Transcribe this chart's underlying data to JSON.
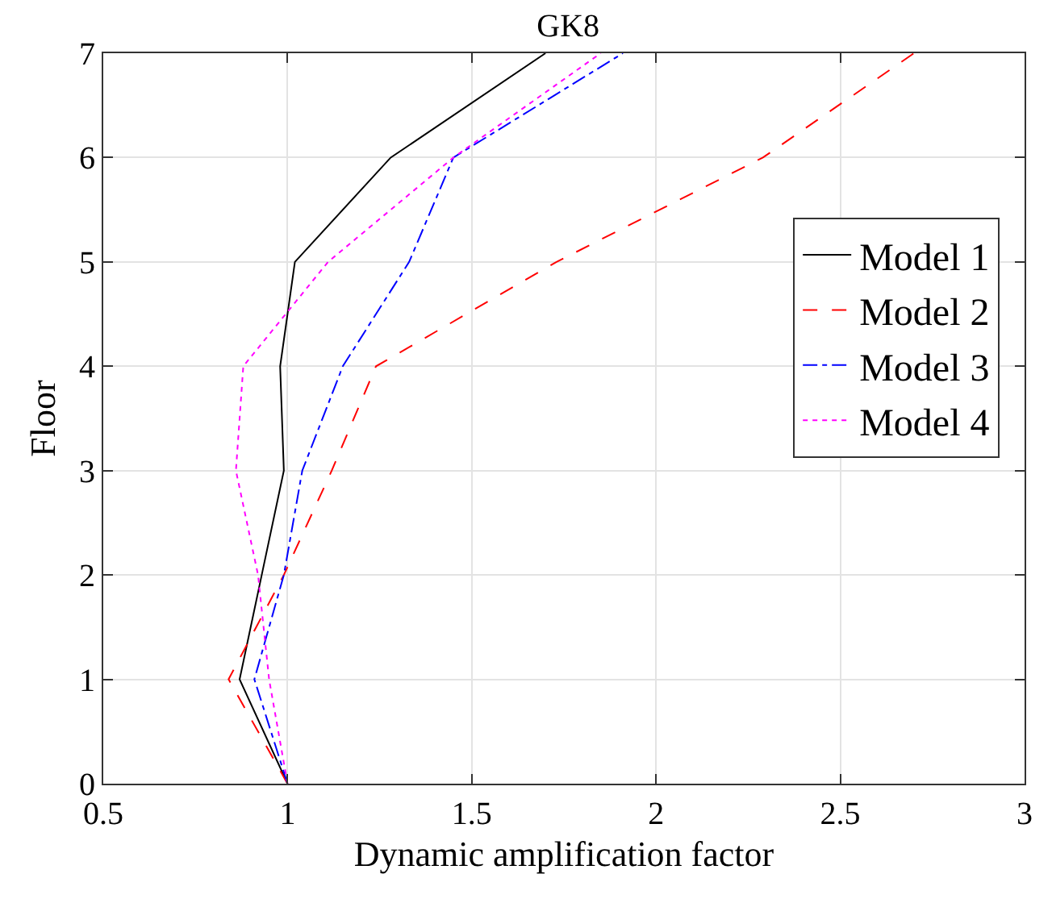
{
  "chart_data": {
    "type": "line",
    "title": "GK8",
    "xlabel": "Dynamic amplification factor",
    "ylabel": "Floor",
    "xlim": [
      0.5,
      3
    ],
    "xticks": [
      0.5,
      1,
      1.5,
      2,
      2.5,
      3
    ],
    "ylim": [
      0,
      7
    ],
    "yticks": [
      0,
      1,
      2,
      3,
      4,
      5,
      6,
      7
    ],
    "grid": true,
    "legend": "right",
    "marker": "none",
    "series": [
      {
        "name": "Model 1",
        "color": "#000000",
        "line_style": "solid",
        "x": [
          1.0,
          0.87,
          0.93,
          0.99,
          0.98,
          1.02,
          1.28,
          1.7
        ],
        "values": [
          0,
          1,
          2,
          3,
          4,
          5,
          6,
          7
        ]
      },
      {
        "name": "Model 2",
        "color": "#ff0000",
        "line_style": "dashed",
        "x": [
          1.0,
          0.84,
          0.99,
          1.12,
          1.24,
          1.73,
          2.29,
          2.7
        ],
        "values": [
          0,
          1,
          2,
          3,
          4,
          5,
          6,
          7
        ]
      },
      {
        "name": "Model 3",
        "color": "#0000ff",
        "line_style": "dashdot",
        "x": [
          1.0,
          0.91,
          0.99,
          1.04,
          1.15,
          1.33,
          1.45,
          1.91
        ],
        "values": [
          0,
          1,
          2,
          3,
          4,
          5,
          6,
          7
        ]
      },
      {
        "name": "Model 4",
        "color": "#ff00ff",
        "line_style": "dotted",
        "x": [
          1.0,
          0.95,
          0.92,
          0.86,
          0.88,
          1.11,
          1.45,
          1.85
        ],
        "values": [
          0,
          1,
          2,
          3,
          4,
          5,
          6,
          7
        ]
      }
    ]
  }
}
